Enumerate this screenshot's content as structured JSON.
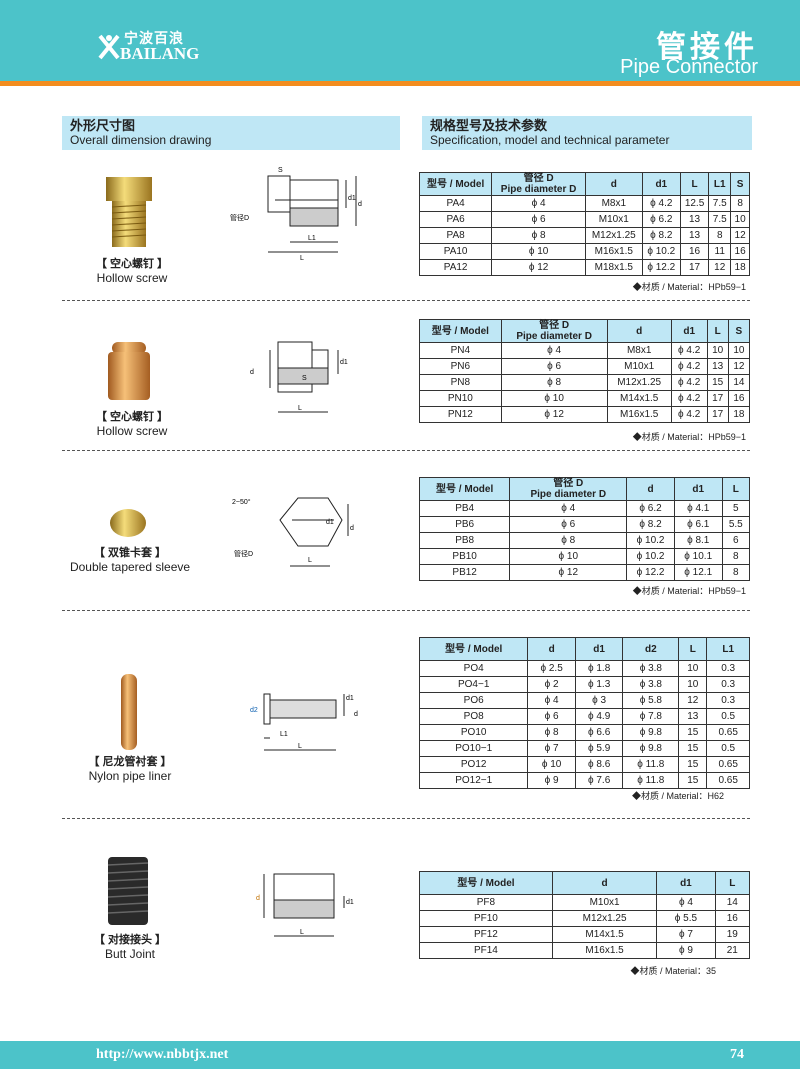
{
  "header": {
    "brand_cn": "宁波百浪",
    "brand_en": "BAILANG",
    "title_cn": "管接件",
    "title_en": "Pipe Connector",
    "colors": {
      "band": "#4cc3c9",
      "stripe": "#f28c1e",
      "section": "#bfe7f5"
    }
  },
  "sections": {
    "left_cn": "外形尺寸图",
    "left_en": "Overall dimension drawing",
    "right_cn": "规格型号及技术参数",
    "right_en": "Specification, model and technical parameter"
  },
  "products": [
    {
      "name_cn": "【 空心螺钉 】",
      "name_en": "Hollow screw",
      "material": "◆材质 / Material：HPb59−1",
      "headers": [
        "型号 / Model",
        "管径 D|Pipe diameter D",
        "d",
        "d1",
        "L",
        "L1",
        "S"
      ],
      "rows": [
        [
          "PA4",
          "ϕ 4",
          "M8x1",
          "ϕ 4.2",
          "12.5",
          "7.5",
          "8"
        ],
        [
          "PA6",
          "ϕ 6",
          "M10x1",
          "ϕ 6.2",
          "13",
          "7.5",
          "10"
        ],
        [
          "PA8",
          "ϕ 8",
          "M12x1.25",
          "ϕ 8.2",
          "13",
          "8",
          "12"
        ],
        [
          "PA10",
          "ϕ 10",
          "M16x1.5",
          "ϕ 10.2",
          "16",
          "11",
          "16"
        ],
        [
          "PA12",
          "ϕ 12",
          "M18x1.5",
          "ϕ 12.2",
          "17",
          "12",
          "18"
        ]
      ]
    },
    {
      "name_cn": "【 空心螺钉 】",
      "name_en": "Hollow screw",
      "material": "◆材质 / Material：HPb59−1",
      "headers": [
        "型号 / Model",
        "管径 D|Pipe diameter D",
        "d",
        "d1",
        "L",
        "S"
      ],
      "rows": [
        [
          "PN4",
          "ϕ 4",
          "M8x1",
          "ϕ 4.2",
          "10",
          "10"
        ],
        [
          "PN6",
          "ϕ 6",
          "M10x1",
          "ϕ 4.2",
          "13",
          "12"
        ],
        [
          "PN8",
          "ϕ 8",
          "M12x1.25",
          "ϕ 4.2",
          "15",
          "14"
        ],
        [
          "PN10",
          "ϕ 10",
          "M14x1.5",
          "ϕ 4.2",
          "17",
          "16"
        ],
        [
          "PN12",
          "ϕ 12",
          "M16x1.5",
          "ϕ 4.2",
          "17",
          "18"
        ]
      ]
    },
    {
      "name_cn": "【 双锥卡套 】",
      "name_en": "Double tapered sleeve",
      "material": "◆材质 / Material：HPb59−1",
      "headers": [
        "型号 / Model",
        "管径 D|Pipe diameter D",
        "d",
        "d1",
        "L"
      ],
      "rows": [
        [
          "PB4",
          "ϕ 4",
          "ϕ 6.2",
          "ϕ 4.1",
          "5"
        ],
        [
          "PB6",
          "ϕ 6",
          "ϕ 8.2",
          "ϕ 6.1",
          "5.5"
        ],
        [
          "PB8",
          "ϕ 8",
          "ϕ 10.2",
          "ϕ 8.1",
          "6"
        ],
        [
          "PB10",
          "ϕ 10",
          "ϕ 10.2",
          "ϕ 10.1",
          "8"
        ],
        [
          "PB12",
          "ϕ 12",
          "ϕ 12.2",
          "ϕ 12.1",
          "8"
        ]
      ]
    },
    {
      "name_cn": "【 尼龙管衬套 】",
      "name_en": "Nylon pipe liner",
      "material": "◆材质 / Material：H62",
      "headers": [
        "型号 / Model",
        "d",
        "d1",
        "d2",
        "L",
        "L1"
      ],
      "rows": [
        [
          "PO4",
          "ϕ 2.5",
          "ϕ 1.8",
          "ϕ 3.8",
          "10",
          "0.3"
        ],
        [
          "PO4−1",
          "ϕ 2",
          "ϕ 1.3",
          "ϕ 3.8",
          "10",
          "0.3"
        ],
        [
          "PO6",
          "ϕ 4",
          "ϕ 3",
          "ϕ 5.8",
          "12",
          "0.3"
        ],
        [
          "PO8",
          "ϕ 6",
          "ϕ 4.9",
          "ϕ 7.8",
          "13",
          "0.5"
        ],
        [
          "PO10",
          "ϕ 8",
          "ϕ 6.6",
          "ϕ 9.8",
          "15",
          "0.65"
        ],
        [
          "PO10−1",
          "ϕ 7",
          "ϕ 5.9",
          "ϕ 9.8",
          "15",
          "0.5"
        ],
        [
          "PO12",
          "ϕ 10",
          "ϕ 8.6",
          "ϕ 11.8",
          "15",
          "0.65"
        ],
        [
          "PO12−1",
          "ϕ 9",
          "ϕ 7.6",
          "ϕ 11.8",
          "15",
          "0.65"
        ]
      ]
    },
    {
      "name_cn": "【 对接接头 】",
      "name_en": "Butt Joint",
      "material": "◆材质 / Material：35",
      "headers": [
        "型号 / Model",
        "d",
        "d1",
        "L"
      ],
      "rows": [
        [
          "PF8",
          "M10x1",
          "ϕ 4",
          "14"
        ],
        [
          "PF10",
          "M12x1.25",
          "ϕ 5.5",
          "16"
        ],
        [
          "PF12",
          "M14x1.5",
          "ϕ 7",
          "19"
        ],
        [
          "PF14",
          "M16x1.5",
          "ϕ 9",
          "21"
        ]
      ]
    }
  ],
  "drawing_labels": {
    "s": "S",
    "d": "d",
    "d1": "d1",
    "l": "L",
    "l1": "L1",
    "pipe": "管径D",
    "angle": "2~50°",
    "d2": "d2"
  },
  "footer": {
    "url": "http://www.nbbtjx.net",
    "page": "74"
  }
}
